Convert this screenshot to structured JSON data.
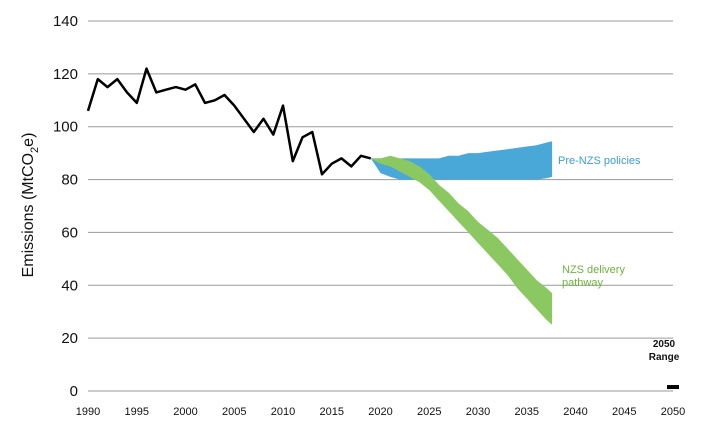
{
  "chart_data": {
    "type": "line",
    "title": "",
    "xlabel": "",
    "ylabel": "Emissions (MtCO2e)",
    "ylabel_parts": {
      "before": "Emissions (MtCO",
      "sub": "2",
      "after": "e)"
    },
    "xlim": [
      1990,
      2050
    ],
    "ylim": [
      0,
      140
    ],
    "grid": true,
    "legend": "none",
    "x_ticks": [
      "1990",
      "1995",
      "2000",
      "2005",
      "2010",
      "2015",
      "2020",
      "2025",
      "2030",
      "2035",
      "2040",
      "2045",
      "2050"
    ],
    "y_ticks": [
      "0",
      "20",
      "40",
      "60",
      "80",
      "100",
      "120",
      "140"
    ],
    "historical": {
      "color": "#000000",
      "x": [
        1990,
        1991,
        1992,
        1993,
        1994,
        1995,
        1996,
        1997,
        1998,
        1999,
        2000,
        2001,
        2002,
        2003,
        2004,
        2005,
        2006,
        2007,
        2008,
        2009,
        2010,
        2011,
        2012,
        2013,
        2014,
        2015,
        2016,
        2017,
        2018,
        2019
      ],
      "y": [
        106,
        118,
        115,
        118,
        113,
        109,
        122,
        113,
        114,
        115,
        114,
        116,
        109,
        110,
        112,
        108,
        103,
        98,
        103,
        97,
        108,
        87,
        96,
        98,
        82,
        86,
        88,
        85,
        89,
        88
      ]
    },
    "bands": [
      {
        "name": "Pre-NZS policies",
        "color": "#4aa8d8",
        "x": [
          2019,
          2020,
          2021,
          2022,
          2023,
          2024,
          2025,
          2026,
          2027,
          2028,
          2029,
          2030,
          2031,
          2032,
          2033,
          2034,
          2035,
          2036,
          2037,
          2037.6
        ],
        "upper": [
          88,
          88,
          88,
          88,
          88,
          88,
          88,
          88,
          89,
          89,
          90,
          90,
          90.5,
          91,
          91.5,
          92,
          92.5,
          93,
          94,
          94.5
        ],
        "lower": [
          88,
          82.5,
          81,
          80,
          80,
          80,
          80,
          80,
          80,
          80,
          80,
          80,
          80,
          80,
          80,
          80,
          80,
          80,
          80.5,
          81
        ]
      },
      {
        "name": "NZS delivery pathway",
        "color": "#8cc862",
        "x": [
          2019,
          2020,
          2021,
          2022,
          2023,
          2024,
          2025,
          2026,
          2027,
          2028,
          2029,
          2030,
          2031,
          2032,
          2033,
          2034,
          2035,
          2036,
          2037,
          2037.6
        ],
        "upper": [
          88,
          88,
          89,
          88,
          87,
          85,
          82,
          78,
          75,
          71,
          68,
          64,
          61,
          58,
          54,
          50,
          46,
          42,
          39,
          37
        ],
        "lower": [
          88,
          86,
          85,
          83,
          81,
          79,
          76,
          72,
          68,
          64,
          60,
          56,
          52,
          48,
          44,
          39,
          35,
          31,
          27,
          25
        ]
      }
    ],
    "range_2050": {
      "label_line1": "2050",
      "label_line2": "Range",
      "x": 2050,
      "low": 0,
      "high": 1.5,
      "color": "#000000"
    },
    "annotations": [
      {
        "text": "Pre-NZS policies",
        "color": "#3a9fd3"
      },
      {
        "text": "NZS delivery",
        "text2": "pathway",
        "color": "#6db33f"
      }
    ]
  }
}
